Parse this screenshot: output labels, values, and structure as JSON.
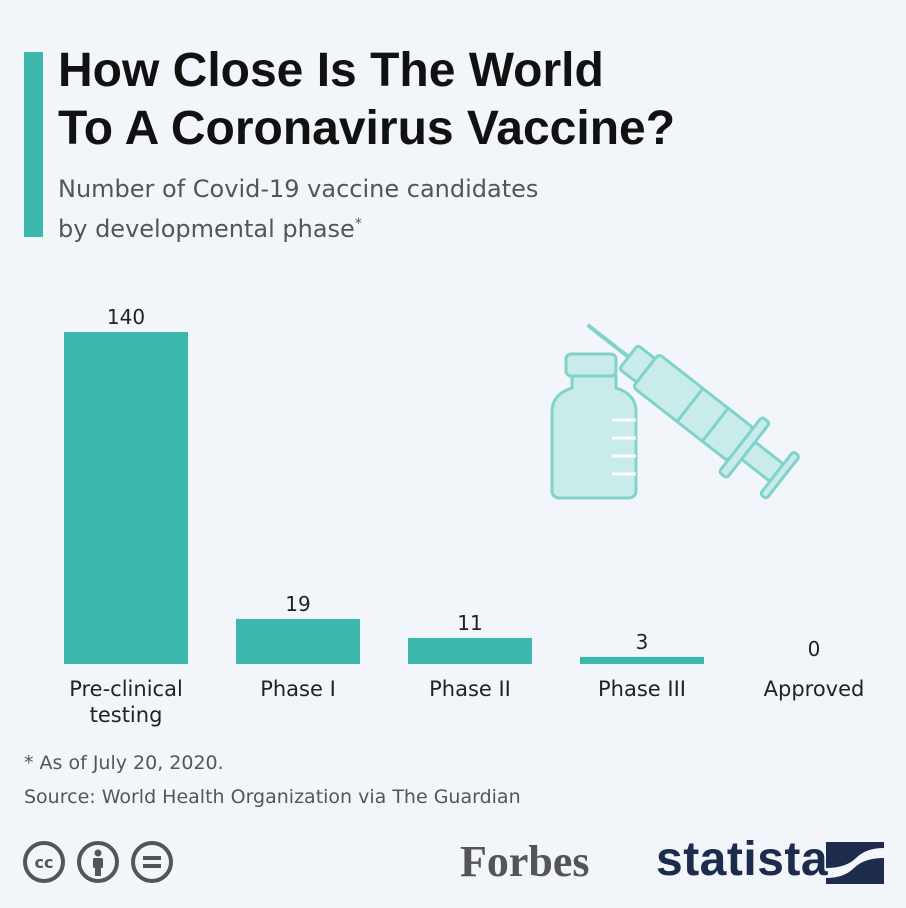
{
  "header": {
    "title_line1": "How Close Is The World",
    "title_line2": "To A Coronavirus Vaccine?",
    "subtitle_line1": "Number of Covid-19 vaccine candidates",
    "subtitle_line2": "by developmental phase",
    "subtitle_marker": "*"
  },
  "chart_data": {
    "type": "bar",
    "categories": [
      "Pre-clinical testing",
      "Phase I",
      "Phase II",
      "Phase III",
      "Approved"
    ],
    "category_lines": [
      [
        "Pre-clinical",
        "testing"
      ],
      [
        "Phase I"
      ],
      [
        "Phase II"
      ],
      [
        "Phase III"
      ],
      [
        "Approved"
      ]
    ],
    "values": [
      140,
      19,
      11,
      3,
      0
    ],
    "value_labels": [
      "140",
      "19",
      "11",
      "3",
      "0"
    ],
    "ylim": [
      0,
      140
    ],
    "grid": false,
    "bar_color": "#3cb8ad",
    "illustration": "vaccine-vial-and-syringe-icon"
  },
  "footer": {
    "footnote": "* As of July 20, 2020.",
    "source": "Source: World Health Organization via The Guardian",
    "license_icons": [
      "cc-icon",
      "attribution-icon",
      "no-derivatives-icon"
    ],
    "forbes": "Forbes",
    "statista": "statista"
  },
  "colors": {
    "accent": "#3cb8ad",
    "background": "#f2f6fa",
    "illustration_fill": "#c9ecea",
    "statista_navy": "#1d2c4c"
  }
}
